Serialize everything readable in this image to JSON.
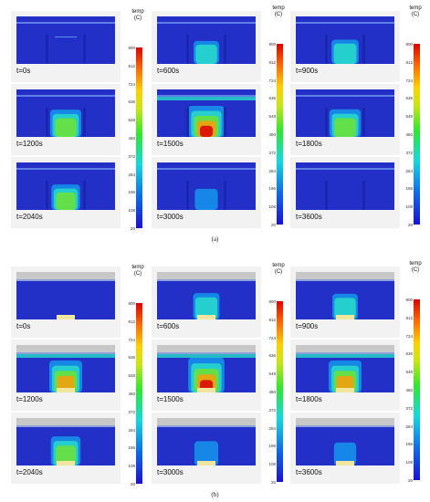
{
  "colorbar": {
    "title_line1": "temp",
    "title_line2": "(C)",
    "ticks": [
      "900",
      "812",
      "724",
      "636",
      "548",
      "460",
      "372",
      "284",
      "196",
      "108",
      "20"
    ]
  },
  "figure_a": {
    "caption": "(a)",
    "panels": [
      {
        "label": "t=0s",
        "heat": 0.0
      },
      {
        "label": "t=600s",
        "heat": 0.35
      },
      {
        "label": "t=900s",
        "heat": 0.45
      },
      {
        "label": "t=1200s",
        "heat": 0.7
      },
      {
        "label": "t=1500s",
        "heat": 1.0
      },
      {
        "label": "t=1800s",
        "heat": 0.72
      },
      {
        "label": "t=2040s",
        "heat": 0.55
      },
      {
        "label": "t=3000s",
        "heat": 0.2
      },
      {
        "label": "t=3600s",
        "heat": 0.12
      }
    ]
  },
  "figure_b": {
    "caption": "(b)",
    "panels": [
      {
        "label": "t=0s",
        "heat": 0.0
      },
      {
        "label": "t=600s",
        "heat": 0.4
      },
      {
        "label": "t=900s",
        "heat": 0.35
      },
      {
        "label": "t=1200s",
        "heat": 0.8
      },
      {
        "label": "t=1500s",
        "heat": 1.0
      },
      {
        "label": "t=1800s",
        "heat": 0.8
      },
      {
        "label": "t=2040s",
        "heat": 0.6
      },
      {
        "label": "t=3000s",
        "heat": 0.25
      },
      {
        "label": "t=3600s",
        "heat": 0.15
      }
    ]
  },
  "colors": {
    "background_field": "#2330c8",
    "ceiling_band": "#c8c8c8",
    "source_pad": "#f0e6a0"
  }
}
